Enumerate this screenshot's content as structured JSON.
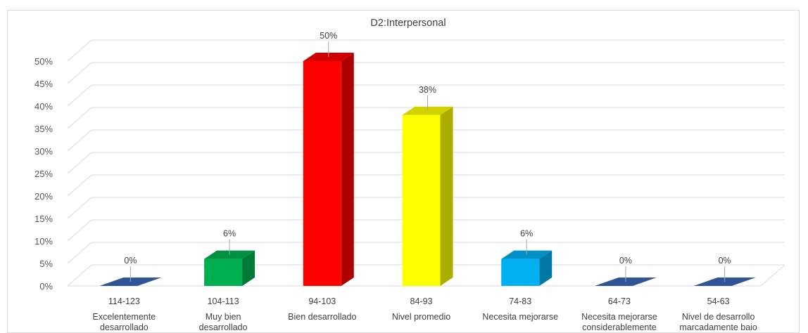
{
  "chart_data": {
    "type": "bar",
    "title": "D2:Interpersonal",
    "xlabel": "",
    "ylabel": "",
    "ylim": [
      0,
      50
    ],
    "y_ticks": [
      "0%",
      "5%",
      "10%",
      "15%",
      "20%",
      "25%",
      "30%",
      "35%",
      "40%",
      "45%",
      "50%"
    ],
    "grid": true,
    "three_d": true,
    "categories": [
      {
        "range": "114-123",
        "label": [
          "Excelentemente",
          "desarrollado"
        ]
      },
      {
        "range": "104-113",
        "label": [
          "Muy bien",
          "desarrollado"
        ]
      },
      {
        "range": "94-103",
        "label": [
          "Bien desarrollado"
        ]
      },
      {
        "range": "84-93",
        "label": [
          "Nivel promedio"
        ]
      },
      {
        "range": "74-83",
        "label": [
          "Necesita mejorarse"
        ]
      },
      {
        "range": "64-73",
        "label": [
          "Necesita mejorarse",
          "considerablemente"
        ]
      },
      {
        "range": "54-63",
        "label": [
          "Nivel de desarrollo",
          "marcadamente bajo"
        ]
      }
    ],
    "values": [
      0,
      6,
      50,
      38,
      6,
      0,
      0
    ],
    "data_labels": [
      "0%",
      "6%",
      "50%",
      "38%",
      "6%",
      "0%",
      "0%"
    ],
    "colors": [
      "#2f5597",
      "#00b050",
      "#ff0000",
      "#ffff00",
      "#00b0f0",
      "#2f5597",
      "#2f5597"
    ]
  }
}
